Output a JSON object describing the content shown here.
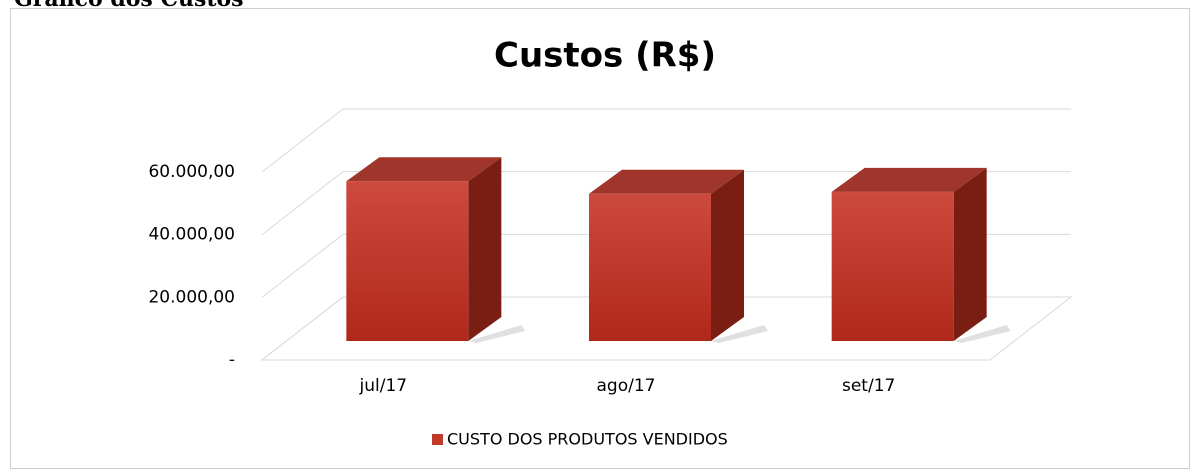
{
  "heading": "Gráfico dos Custos",
  "chart_data": {
    "type": "bar3d",
    "title": "Custos (R$)",
    "categories": [
      "jul/17",
      "ago/17",
      "set/17"
    ],
    "series": [
      {
        "name": "CUSTO DOS PRODUTOS VENDIDOS",
        "color": "#c0392b",
        "values": [
          51000,
          47000,
          47600
        ]
      }
    ],
    "ylim": [
      0,
      60000
    ],
    "yticks": [
      {
        "value": 0,
        "label": "-"
      },
      {
        "value": 20000,
        "label": "20.000,00"
      },
      {
        "value": 40000,
        "label": "40.000,00"
      },
      {
        "value": 60000,
        "label": "60.000,00"
      }
    ],
    "grid": true,
    "legend": "bottom"
  }
}
